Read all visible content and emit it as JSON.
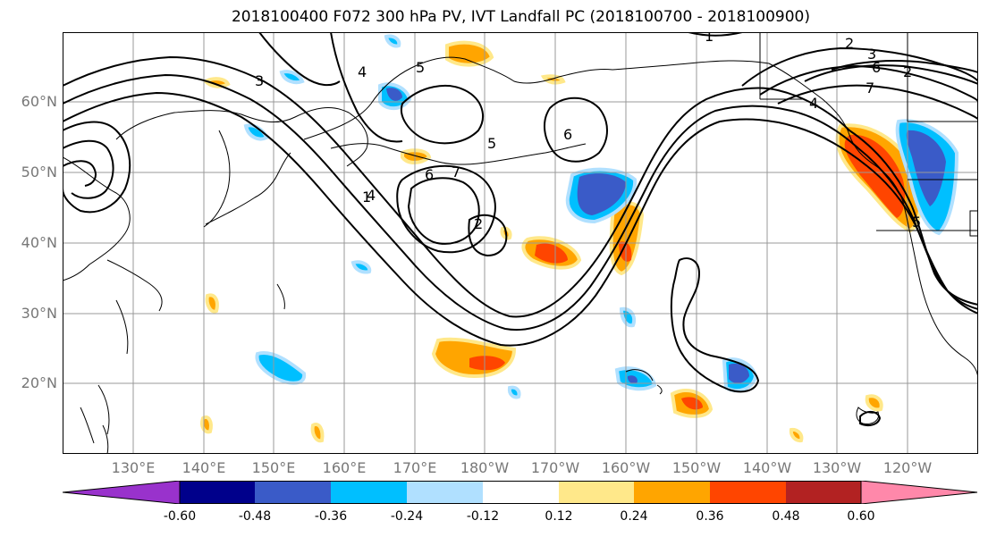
{
  "title": "2018100400 F072 300 hPa PV, IVT Landfall PC (2018100700 - 2018100900)",
  "lat_labels": [
    {
      "text": "60°N",
      "lat": 60
    },
    {
      "text": "50°N",
      "lat": 50
    },
    {
      "text": "40°N",
      "lat": 40
    },
    {
      "text": "30°N",
      "lat": 30
    },
    {
      "text": "20°N",
      "lat": 20
    }
  ],
  "lon_labels": [
    {
      "text": "130°E",
      "lon": 130
    },
    {
      "text": "140°E",
      "lon": 140
    },
    {
      "text": "150°E",
      "lon": 150
    },
    {
      "text": "160°E",
      "lon": 160
    },
    {
      "text": "170°E",
      "lon": 170
    },
    {
      "text": "180°W",
      "lon": 180
    },
    {
      "text": "170°W",
      "lon": 190
    },
    {
      "text": "160°W",
      "lon": 200
    },
    {
      "text": "150°W",
      "lon": 210
    },
    {
      "text": "140°W",
      "lon": 220
    },
    {
      "text": "130°W",
      "lon": 230
    },
    {
      "text": "120°W",
      "lon": 240
    }
  ],
  "map_extent": {
    "lon": [
      120,
      250
    ],
    "lat": [
      10,
      70
    ]
  },
  "colorbar": {
    "colors": [
      "#9932cc",
      "#00008b",
      "#3a5bc8",
      "#00bfff",
      "#b0e0ff",
      "#ffffff",
      "#ffe88a",
      "#ffa500",
      "#ff4500",
      "#b22222",
      "#ff88aa"
    ],
    "tick_labels": [
      "-0.60",
      "-0.48",
      "-0.36",
      "-0.24",
      "-0.12",
      "0.12",
      "0.24",
      "0.36",
      "0.48",
      "0.60"
    ]
  },
  "contour_labels": [
    "1",
    "2",
    "3",
    "4",
    "5",
    "6",
    "7"
  ],
  "style": {
    "grid": "#999999",
    "coast": "#000000",
    "contour": "#000000"
  }
}
